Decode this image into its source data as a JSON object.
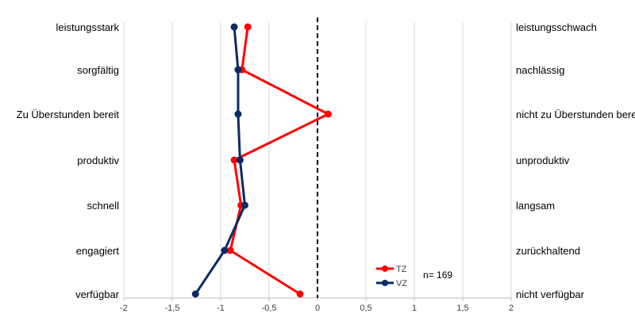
{
  "chart_data": {
    "type": "line",
    "orientation": "horizontal",
    "categories_left": [
      "leistungsstark",
      "sorgfältig",
      "Zu Überstunden bereit",
      "produktiv",
      "schnell",
      "engagiert",
      "verfügbar"
    ],
    "categories_right": [
      "leistungsschwach",
      "nachlässig",
      "nicht zu Überstunden bereit",
      "unproduktiv",
      "langsam",
      "zurückhaltend",
      "nicht verfügbar"
    ],
    "xlim": [
      -2,
      2
    ],
    "x_ticks": [
      "-2",
      "-1,5",
      "-1",
      "-0,5",
      "0",
      "0,5",
      "1",
      "1,5",
      "2"
    ],
    "x_tick_values": [
      -2,
      -1.5,
      -1,
      -0.5,
      0,
      0.5,
      1,
      1.5,
      2
    ],
    "reference_line": {
      "x": 0,
      "style": "dashed"
    },
    "grid": true,
    "legend_position": "bottom-right",
    "series": [
      {
        "name": "TZ",
        "color": "#ff0000",
        "values": [
          -0.72,
          -0.78,
          0.11,
          -0.86,
          -0.79,
          -0.9,
          -0.18
        ]
      },
      {
        "name": "VZ",
        "color": "#0a2a66",
        "values": [
          -0.86,
          -0.82,
          -0.82,
          -0.8,
          -0.75,
          -0.96,
          -1.26
        ]
      }
    ],
    "annotation": "n= 169"
  }
}
